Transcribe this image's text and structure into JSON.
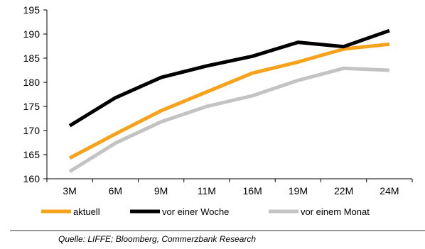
{
  "chart_data": {
    "type": "line",
    "title": "",
    "xlabel": "",
    "ylabel": "",
    "categories": [
      "3M",
      "6M",
      "9M",
      "11M",
      "16M",
      "19M",
      "22M",
      "24M"
    ],
    "ylim": [
      160,
      195
    ],
    "yticks": [
      160,
      165,
      170,
      175,
      180,
      185,
      190,
      195
    ],
    "grid": false,
    "legend_position": "bottom",
    "series": [
      {
        "name": "aktuell",
        "color": "#f7a21b",
        "values": [
          164.3,
          169.3,
          174.1,
          178.0,
          181.9,
          184.2,
          186.9,
          187.9
        ]
      },
      {
        "name": "vor einer Woche",
        "color": "#000000",
        "values": [
          171.0,
          176.8,
          181.0,
          183.4,
          185.4,
          188.3,
          187.4,
          190.7
        ]
      },
      {
        "name": "vor einem Monat",
        "color": "#c3c3c3",
        "values": [
          161.5,
          167.4,
          171.8,
          175.0,
          177.2,
          180.4,
          182.9,
          182.5
        ]
      }
    ]
  },
  "source": "Quelle: LIFFE; Bloomberg, Commerzbank Research"
}
